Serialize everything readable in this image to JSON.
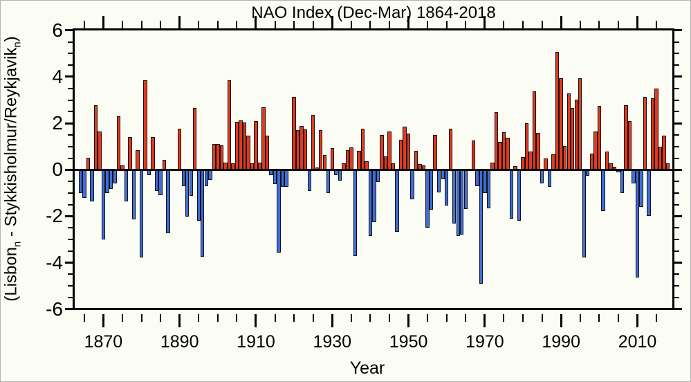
{
  "figure": {
    "title": "NAO Index (Dec-Mar) 1864-2018",
    "background": "#fbfcf4",
    "frame_color": "#000000"
  },
  "axes": {
    "y": {
      "label_parts": {
        "open": "(Lisbon",
        "sub1": "n",
        "middle": " - Stykkisholmur/Reykjavik",
        "sub2": "n",
        "close": ")"
      },
      "major_tick_labels": [
        "6",
        "4",
        "2",
        "0",
        "-2",
        "-4",
        "-6"
      ],
      "major_tick_values": [
        6,
        4,
        2,
        0,
        -2,
        -4,
        -6
      ],
      "minor_step": 0.5,
      "range": [
        -6,
        6
      ]
    },
    "x": {
      "label": "Year",
      "major_tick_labels": [
        "1870",
        "1890",
        "1910",
        "1930",
        "1950",
        "1970",
        "1990",
        "2010"
      ],
      "major_tick_values": [
        1870,
        1890,
        1910,
        1930,
        1950,
        1970,
        1990,
        2010
      ],
      "minor_step": 5,
      "minor_start": 1865,
      "minor_end": 2015
    }
  },
  "chart_data": {
    "type": "bar",
    "title": "NAO Index (Dec-Mar) 1864-2018",
    "xlabel": "Year",
    "ylabel": "(Lisbon_n - Stykkisholmur/Reykjavik_n)",
    "ylim": [
      -6,
      6
    ],
    "grid": false,
    "positive_color": "#e2391d",
    "negative_color": "#3d6dd8",
    "bar_outline_color": "#111111",
    "start_year": 1864,
    "end_year": 2018,
    "values": [
      -1.0,
      -1.22,
      0.52,
      -1.37,
      2.77,
      1.66,
      -3.01,
      -1.0,
      -0.82,
      -0.6,
      2.3,
      0.19,
      -1.35,
      1.4,
      -2.15,
      0.85,
      -3.77,
      3.84,
      -0.22,
      1.4,
      -0.9,
      -1.09,
      0.43,
      -2.73,
      0.05,
      -0.05,
      1.77,
      -0.71,
      -2.02,
      -1.13,
      2.65,
      -2.2,
      -3.75,
      -0.7,
      -0.45,
      1.1,
      1.12,
      1.05,
      0.3,
      3.85,
      0.28,
      2.05,
      2.12,
      2.02,
      1.47,
      0.28,
      2.09,
      0.3,
      2.68,
      1.47,
      -0.22,
      -0.62,
      -3.55,
      -0.73,
      -0.73,
      0.02,
      3.15,
      1.7,
      1.88,
      1.75,
      -0.91,
      2.36,
      0.1,
      1.7,
      0.64,
      -1.01,
      0.92,
      -0.22,
      -0.47,
      0.28,
      0.84,
      0.97,
      -3.7,
      0.82,
      1.78,
      0.38,
      -2.85,
      -2.25,
      -0.52,
      1.49,
      0.57,
      1.65,
      0.28,
      -2.68,
      1.3,
      1.85,
      1.55,
      -1.26,
      0.82,
      0.25,
      0.18,
      -2.48,
      -1.71,
      1.49,
      -0.96,
      -0.4,
      -1.53,
      1.76,
      -2.32,
      -2.85,
      -2.78,
      -1.69,
      0.02,
      1.27,
      -0.71,
      -4.89,
      -0.99,
      -1.66,
      0.3,
      2.48,
      1.19,
      1.62,
      1.37,
      -2.1,
      0.15,
      -2.2,
      0.54,
      2.01,
      0.79,
      3.38,
      1.6,
      -0.6,
      0.48,
      -0.74,
      0.67,
      5.06,
      3.93,
      1.02,
      3.27,
      2.66,
      3.01,
      3.93,
      -3.78,
      -0.27,
      0.69,
      1.66,
      2.76,
      -1.79,
      0.77,
      0.28,
      0.13,
      -0.12,
      -0.99,
      2.78,
      2.1,
      -0.6,
      -4.64,
      -1.61,
      3.13,
      -1.99,
      3.07,
      3.5,
      0.99,
      1.47,
      0.28
    ]
  }
}
